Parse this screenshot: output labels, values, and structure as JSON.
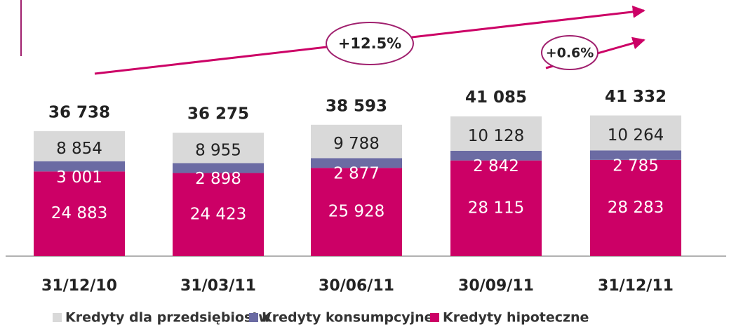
{
  "chart_data": {
    "type": "stacked_bar",
    "categories": [
      "31/12/10",
      "31/03/11",
      "30/06/11",
      "30/09/11",
      "31/12/11"
    ],
    "series": [
      {
        "name": "Kredyty hipoteczne",
        "color": "#cc0066",
        "values": [
          24883,
          24423,
          25928,
          28115,
          28283
        ],
        "value_labels": [
          "24 883",
          "24 423",
          "25 928",
          "28 115",
          "28 283"
        ]
      },
      {
        "name": "Kredyty konsumpcyjne",
        "color": "#6b6ba3",
        "values": [
          3001,
          2898,
          2877,
          2842,
          2785
        ],
        "value_labels": [
          "3 001",
          "2 898",
          "2 877",
          "2 842",
          "2 785"
        ]
      },
      {
        "name": "Kredyty dla przedsiębiostw",
        "color": "#d9d9d9",
        "values": [
          8854,
          8955,
          9788,
          10128,
          10264
        ],
        "value_labels": [
          "8 854",
          "8 955",
          "9 788",
          "10 128",
          "10 264"
        ]
      }
    ],
    "totals": [
      36738,
      36275,
      38593,
      41085,
      41332
    ],
    "total_labels": [
      "36 738",
      "36 275",
      "38 593",
      "41 085",
      "41 332"
    ],
    "annotations": [
      "+12.5%",
      "+0.6%"
    ]
  }
}
